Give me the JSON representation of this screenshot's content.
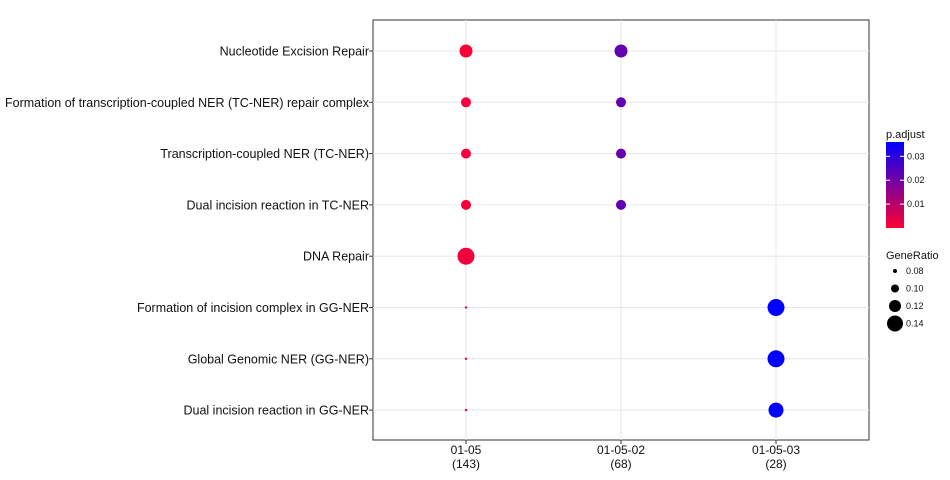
{
  "chart_data": {
    "type": "scatter",
    "title": "",
    "xlabel": "",
    "ylabel": "",
    "categories_x": [
      {
        "label": "01-05",
        "count": "(143)"
      },
      {
        "label": "01-05-02",
        "count": "(68)"
      },
      {
        "label": "01-05-03",
        "count": "(28)"
      }
    ],
    "categories_y": [
      "Nucleotide Excision Repair",
      "Formation of transcription-coupled NER (TC-NER) repair complex",
      "Transcription-coupled NER (TC-NER)",
      "Dual incision reaction in TC-NER",
      "DNA Repair",
      "Formation of incision complex in GG-NER",
      "Global Genomic NER (GG-NER)",
      "Dual incision reaction in GG-NER"
    ],
    "points": [
      {
        "x": "01-05",
        "y": "Nucleotide Excision Repair",
        "gene_ratio": 0.125,
        "p_adjust": 0.001
      },
      {
        "x": "01-05",
        "y": "Formation of transcription-coupled NER (TC-NER) repair complex",
        "gene_ratio": 0.11,
        "p_adjust": 0.001
      },
      {
        "x": "01-05",
        "y": "Transcription-coupled NER (TC-NER)",
        "gene_ratio": 0.11,
        "p_adjust": 0.001
      },
      {
        "x": "01-05",
        "y": "Dual incision reaction in TC-NER",
        "gene_ratio": 0.11,
        "p_adjust": 0.001
      },
      {
        "x": "01-05",
        "y": "DNA Repair",
        "gene_ratio": 0.145,
        "p_adjust": 0.002
      },
      {
        "x": "01-05",
        "y": "Formation of incision complex in GG-NER",
        "gene_ratio": 0.065,
        "p_adjust": 0.001
      },
      {
        "x": "01-05",
        "y": "Global Genomic NER (GG-NER)",
        "gene_ratio": 0.065,
        "p_adjust": 0.001
      },
      {
        "x": "01-05",
        "y": "Dual incision reaction in GG-NER",
        "gene_ratio": 0.065,
        "p_adjust": 0.001
      },
      {
        "x": "01-05-02",
        "y": "Nucleotide Excision Repair",
        "gene_ratio": 0.125,
        "p_adjust": 0.022
      },
      {
        "x": "01-05-02",
        "y": "Formation of transcription-coupled NER (TC-NER) repair complex",
        "gene_ratio": 0.11,
        "p_adjust": 0.022
      },
      {
        "x": "01-05-02",
        "y": "Transcription-coupled NER (TC-NER)",
        "gene_ratio": 0.11,
        "p_adjust": 0.022
      },
      {
        "x": "01-05-02",
        "y": "Dual incision reaction in TC-NER",
        "gene_ratio": 0.11,
        "p_adjust": 0.022
      },
      {
        "x": "01-05-03",
        "y": "Formation of incision complex in GG-NER",
        "gene_ratio": 0.145,
        "p_adjust": 0.036
      },
      {
        "x": "01-05-03",
        "y": "Global Genomic NER (GG-NER)",
        "gene_ratio": 0.145,
        "p_adjust": 0.036
      },
      {
        "x": "01-05-03",
        "y": "Dual incision reaction in GG-NER",
        "gene_ratio": 0.135,
        "p_adjust": 0.036
      }
    ],
    "color_legend": {
      "title": "p.adjust",
      "ticks": [
        0.03,
        0.02,
        0.01
      ],
      "tick_labels": [
        "0.03",
        "0.02",
        "0.01"
      ],
      "range": [
        0.0,
        0.036
      ],
      "low_color": "#ff0033",
      "high_color": "#0000ff"
    },
    "size_legend": {
      "title": "GeneRatio",
      "values": [
        0.08,
        0.1,
        0.12,
        0.14
      ],
      "labels": [
        "0.08",
        "0.10",
        "0.12",
        "0.14"
      ]
    },
    "grid": true,
    "legend_position": "right"
  }
}
